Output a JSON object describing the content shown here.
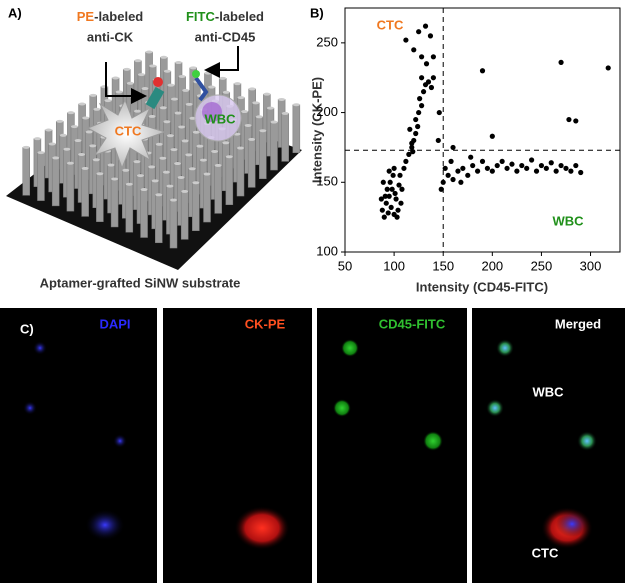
{
  "panel_a": {
    "label": "A)",
    "probe_ck": {
      "dye": "PE",
      "suffix": "-labeled",
      "target": "anti-CK"
    },
    "probe_cd45": {
      "dye": "FITC",
      "suffix": "-labeled",
      "target": "anti-CD45"
    },
    "ctc": "CTC",
    "wbc": "WBC",
    "caption": "Aptamer-grafted SiNW substrate"
  },
  "chart_data": {
    "type": "scatter",
    "label": "B)",
    "xlabel": "Intensity (CD45-FITC)",
    "ylabel": "Intensity (CK-PE)",
    "annotations": {
      "ctc": "CTC",
      "wbc": "WBC"
    },
    "color": "#000000",
    "xlim": [
      50,
      330
    ],
    "ylim": [
      100,
      275
    ],
    "xticks": [
      50,
      100,
      150,
      200,
      250,
      300
    ],
    "yticks": [
      100,
      150,
      200,
      250
    ],
    "thresholds": {
      "x": 150,
      "y": 173
    },
    "x": [
      88,
      90,
      92,
      94,
      95,
      97,
      98,
      100,
      102,
      104,
      105,
      93,
      91,
      96,
      99,
      101,
      103,
      107,
      89,
      87,
      106,
      108,
      110,
      100,
      95,
      112,
      115,
      118,
      120,
      122,
      124,
      118,
      125,
      128,
      126,
      130,
      132,
      128,
      135,
      138,
      140,
      133,
      122,
      116,
      119,
      125,
      132,
      137,
      120,
      128,
      112,
      140,
      150,
      155,
      160,
      165,
      170,
      175,
      180,
      185,
      190,
      195,
      200,
      205,
      210,
      215,
      220,
      225,
      230,
      235,
      240,
      245,
      250,
      255,
      260,
      265,
      270,
      275,
      280,
      285,
      290,
      148,
      158,
      168,
      178,
      152,
      160,
      200,
      190,
      270,
      318,
      278,
      285,
      146,
      145
    ],
    "values": [
      130,
      125,
      135,
      128,
      140,
      132,
      145,
      127,
      138,
      130,
      148,
      145,
      140,
      150,
      155,
      142,
      125,
      135,
      150,
      138,
      155,
      145,
      160,
      160,
      158,
      165,
      170,
      175,
      180,
      185,
      190,
      178,
      200,
      205,
      210,
      215,
      220,
      225,
      222,
      218,
      225,
      235,
      195,
      188,
      172,
      258,
      262,
      255,
      245,
      240,
      252,
      240,
      150,
      155,
      152,
      158,
      160,
      155,
      162,
      158,
      165,
      160,
      158,
      162,
      165,
      160,
      163,
      158,
      162,
      160,
      166,
      158,
      162,
      160,
      164,
      158,
      162,
      160,
      158,
      162,
      157,
      145,
      165,
      150,
      168,
      160,
      175,
      183,
      230,
      236,
      232,
      195,
      194,
      200,
      180
    ]
  },
  "panel_c": {
    "label": "C)",
    "channels": [
      "DAPI",
      "CK-PE",
      "CD45-FITC",
      "Merged"
    ],
    "wbc": "WBC",
    "ctc": "CTC"
  }
}
